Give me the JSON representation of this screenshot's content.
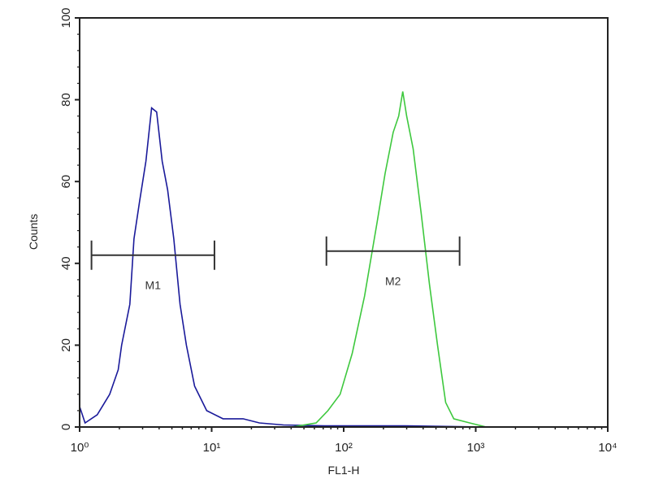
{
  "chart_data": {
    "type": "line",
    "title": "",
    "xlabel": "FL1-H",
    "ylabel": "Counts",
    "xscale": "log",
    "xlim": [
      1,
      10000
    ],
    "ylim": [
      0,
      100
    ],
    "grid": false,
    "x_tick_labels": [
      "10⁰",
      "10¹",
      "10²",
      "10³",
      "10⁴"
    ],
    "x_ticks": [
      1,
      10,
      100,
      1000,
      10000
    ],
    "y_tick_labels": [
      "0",
      "20",
      "40",
      "60",
      "80",
      "100"
    ],
    "y_ticks": [
      0,
      20,
      40,
      60,
      80,
      100
    ],
    "series": [
      {
        "color": "#1a1a9a",
        "x": [
          1.0,
          1.1,
          1.36,
          1.69,
          1.96,
          2.08,
          2.4,
          2.58,
          2.84,
          3.18,
          3.51,
          3.83,
          4.22,
          4.64,
          5.17,
          5.76,
          6.44,
          7.43,
          9.17,
          12.2,
          17.3,
          23.0,
          35.0,
          71,
          290,
          1190,
          10000
        ],
        "y": [
          5,
          1,
          3,
          8,
          14,
          20,
          30,
          46,
          55,
          65,
          78,
          77,
          65,
          58,
          46,
          30,
          20,
          10,
          4,
          2,
          2,
          1,
          0.5,
          0.3,
          0.3,
          0,
          0
        ]
      },
      {
        "color": "#3ec83e",
        "x": [
          1,
          40.5,
          61.9,
          76,
          94,
          116,
          144,
          179,
          206,
          237,
          261,
          280,
          300,
          336,
          387,
          446,
          514,
          592,
          682,
          900,
          1200,
          10000
        ],
        "y": [
          0,
          0,
          1,
          4,
          8,
          18,
          32,
          50,
          62,
          72,
          76,
          82,
          76,
          68,
          52,
          35,
          20,
          6,
          2,
          1,
          0,
          0
        ]
      }
    ],
    "markers": [
      {
        "label": "M1",
        "x_range": [
          1.23,
          10.5
        ],
        "y": 42
      },
      {
        "label": "M2",
        "x_range": [
          74,
          755
        ],
        "y": 43
      }
    ]
  }
}
